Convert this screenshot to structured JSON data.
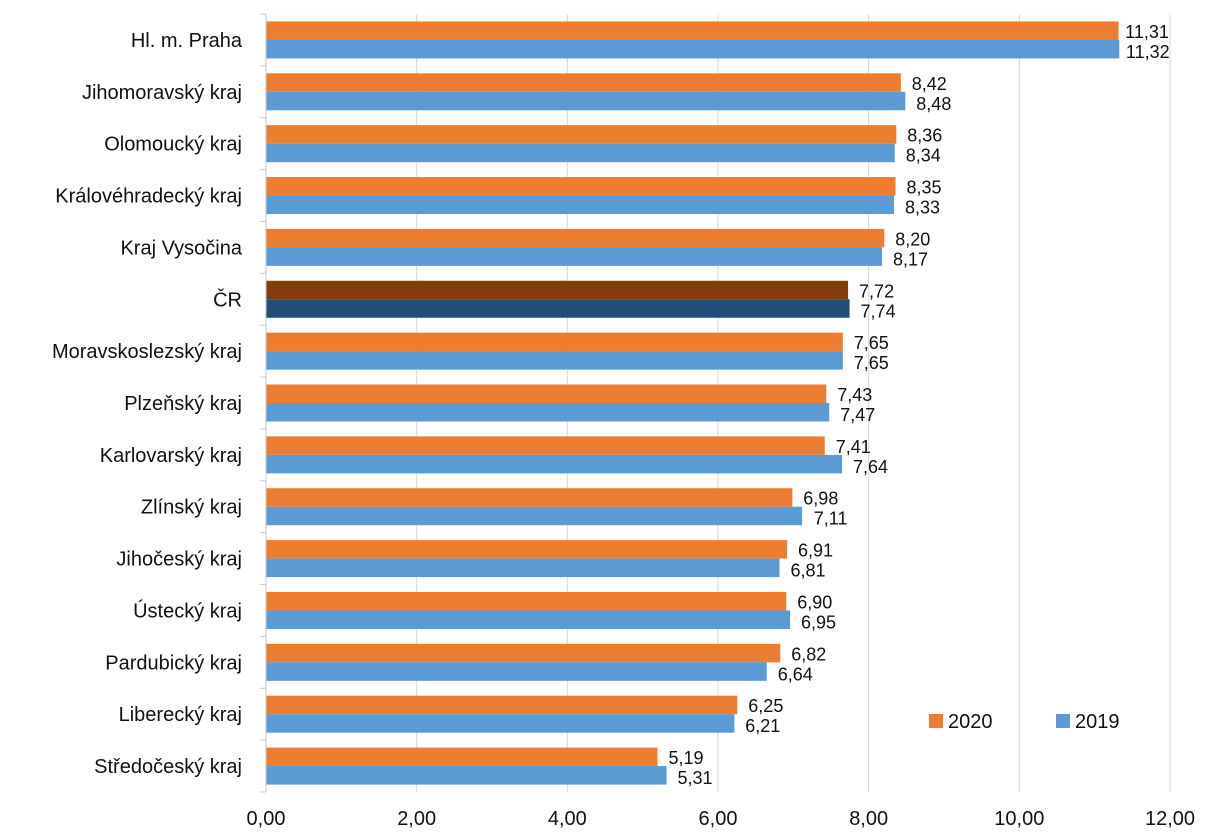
{
  "chart_data": {
    "type": "bar",
    "orientation": "horizontal",
    "categories": [
      "Hl. m. Praha",
      "Jihomoravský kraj",
      "Olomoucký kraj",
      "Královéhradecký kraj",
      "Kraj Vysočina",
      "ČR",
      "Moravskoslezský kraj",
      "Plzeňský kraj",
      "Karlovarský kraj",
      "Zlínský kraj",
      "Jihočeský kraj",
      "Ústecký kraj",
      "Pardubický kraj",
      "Liberecký kraj",
      "Středočeský kraj"
    ],
    "series": [
      {
        "name": "2020",
        "color": "#ED7D31",
        "highlight_color": "#843C0C",
        "values": [
          11.31,
          8.42,
          8.36,
          8.35,
          8.2,
          7.72,
          7.65,
          7.43,
          7.41,
          6.98,
          6.91,
          6.9,
          6.82,
          6.25,
          5.19
        ],
        "labels": [
          "11,31",
          "8,42",
          "8,36",
          "8,35",
          "8,20",
          "7,72",
          "7,65",
          "7,43",
          "7,41",
          "6,98",
          "6,91",
          "6,90",
          "6,82",
          "6,25",
          "5,19"
        ]
      },
      {
        "name": "2019",
        "color": "#5B9BD5",
        "highlight_color": "#1F4E79",
        "values": [
          11.32,
          8.48,
          8.34,
          8.33,
          8.17,
          7.74,
          7.65,
          7.47,
          7.64,
          7.11,
          6.81,
          6.95,
          6.64,
          6.21,
          5.31
        ],
        "labels": [
          "11,32",
          "8,48",
          "8,34",
          "8,33",
          "8,17",
          "7,74",
          "7,65",
          "7,47",
          "7,64",
          "7,11",
          "6,81",
          "6,95",
          "6,64",
          "6,21",
          "5,31"
        ]
      }
    ],
    "highlight_category": "ČR",
    "x_ticks": [
      0,
      2,
      4,
      6,
      8,
      10,
      12
    ],
    "x_tick_labels": [
      "0,00",
      "2,00",
      "4,00",
      "6,00",
      "8,00",
      "10,00",
      "12,00"
    ],
    "xlim": [
      0,
      12
    ],
    "grid": "vertical",
    "legend": {
      "placement": "bottom-right",
      "entries": [
        "2020",
        "2019"
      ]
    },
    "title": "",
    "xlabel": "",
    "ylabel": ""
  }
}
